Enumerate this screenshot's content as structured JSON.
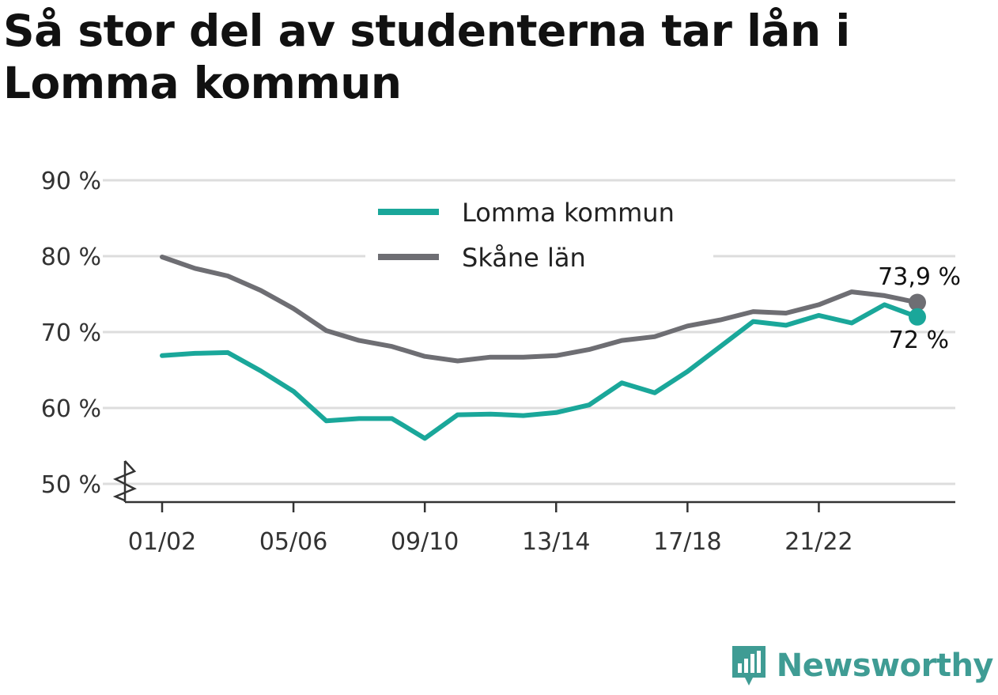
{
  "title": "Så stor del av studenterna tar lån i Lomma kommun",
  "brand": {
    "name": "Newsworthy",
    "icon": "newsworthy-logo-icon",
    "color": "#3f9c94"
  },
  "chart_data": {
    "type": "line",
    "title": "Så stor del av studenterna tar lån i Lomma kommun",
    "xlabel": "",
    "ylabel": "",
    "x": [
      "01/02",
      "02/03",
      "03/04",
      "04/05",
      "05/06",
      "06/07",
      "07/08",
      "08/09",
      "09/10",
      "10/11",
      "11/12",
      "12/13",
      "13/14",
      "14/15",
      "15/16",
      "16/17",
      "17/18",
      "18/19",
      "19/20",
      "20/21",
      "21/22",
      "22/23",
      "23/24",
      "24/25"
    ],
    "x_tick_labels": [
      "01/02",
      "05/06",
      "09/10",
      "13/14",
      "17/18",
      "21/22"
    ],
    "y_ticks": [
      50,
      60,
      70,
      80,
      90
    ],
    "y_tick_labels": [
      "50 %",
      "60 %",
      "70 %",
      "80 %",
      "90 %"
    ],
    "ylim": [
      50,
      90
    ],
    "y_axis_break": true,
    "grid": true,
    "legend_position": "top-center",
    "series": [
      {
        "name": "Lomma kommun",
        "color": "#1aa79a",
        "values": [
          66.9,
          67.2,
          67.3,
          64.9,
          62.2,
          58.3,
          58.6,
          58.6,
          56.0,
          59.1,
          59.2,
          59.0,
          59.4,
          60.4,
          63.3,
          62.0,
          64.8,
          68.1,
          71.4,
          70.9,
          72.2,
          71.2,
          73.6,
          72.0
        ],
        "end_label": "72 %"
      },
      {
        "name": "Skåne län",
        "color": "#6e6e73",
        "values": [
          79.9,
          78.4,
          77.4,
          75.5,
          73.1,
          70.2,
          68.9,
          68.1,
          66.8,
          66.2,
          66.7,
          66.7,
          66.9,
          67.7,
          68.9,
          69.4,
          70.8,
          71.6,
          72.7,
          72.5,
          73.6,
          75.3,
          74.8,
          73.9
        ],
        "end_label": "73,9 %"
      }
    ]
  }
}
